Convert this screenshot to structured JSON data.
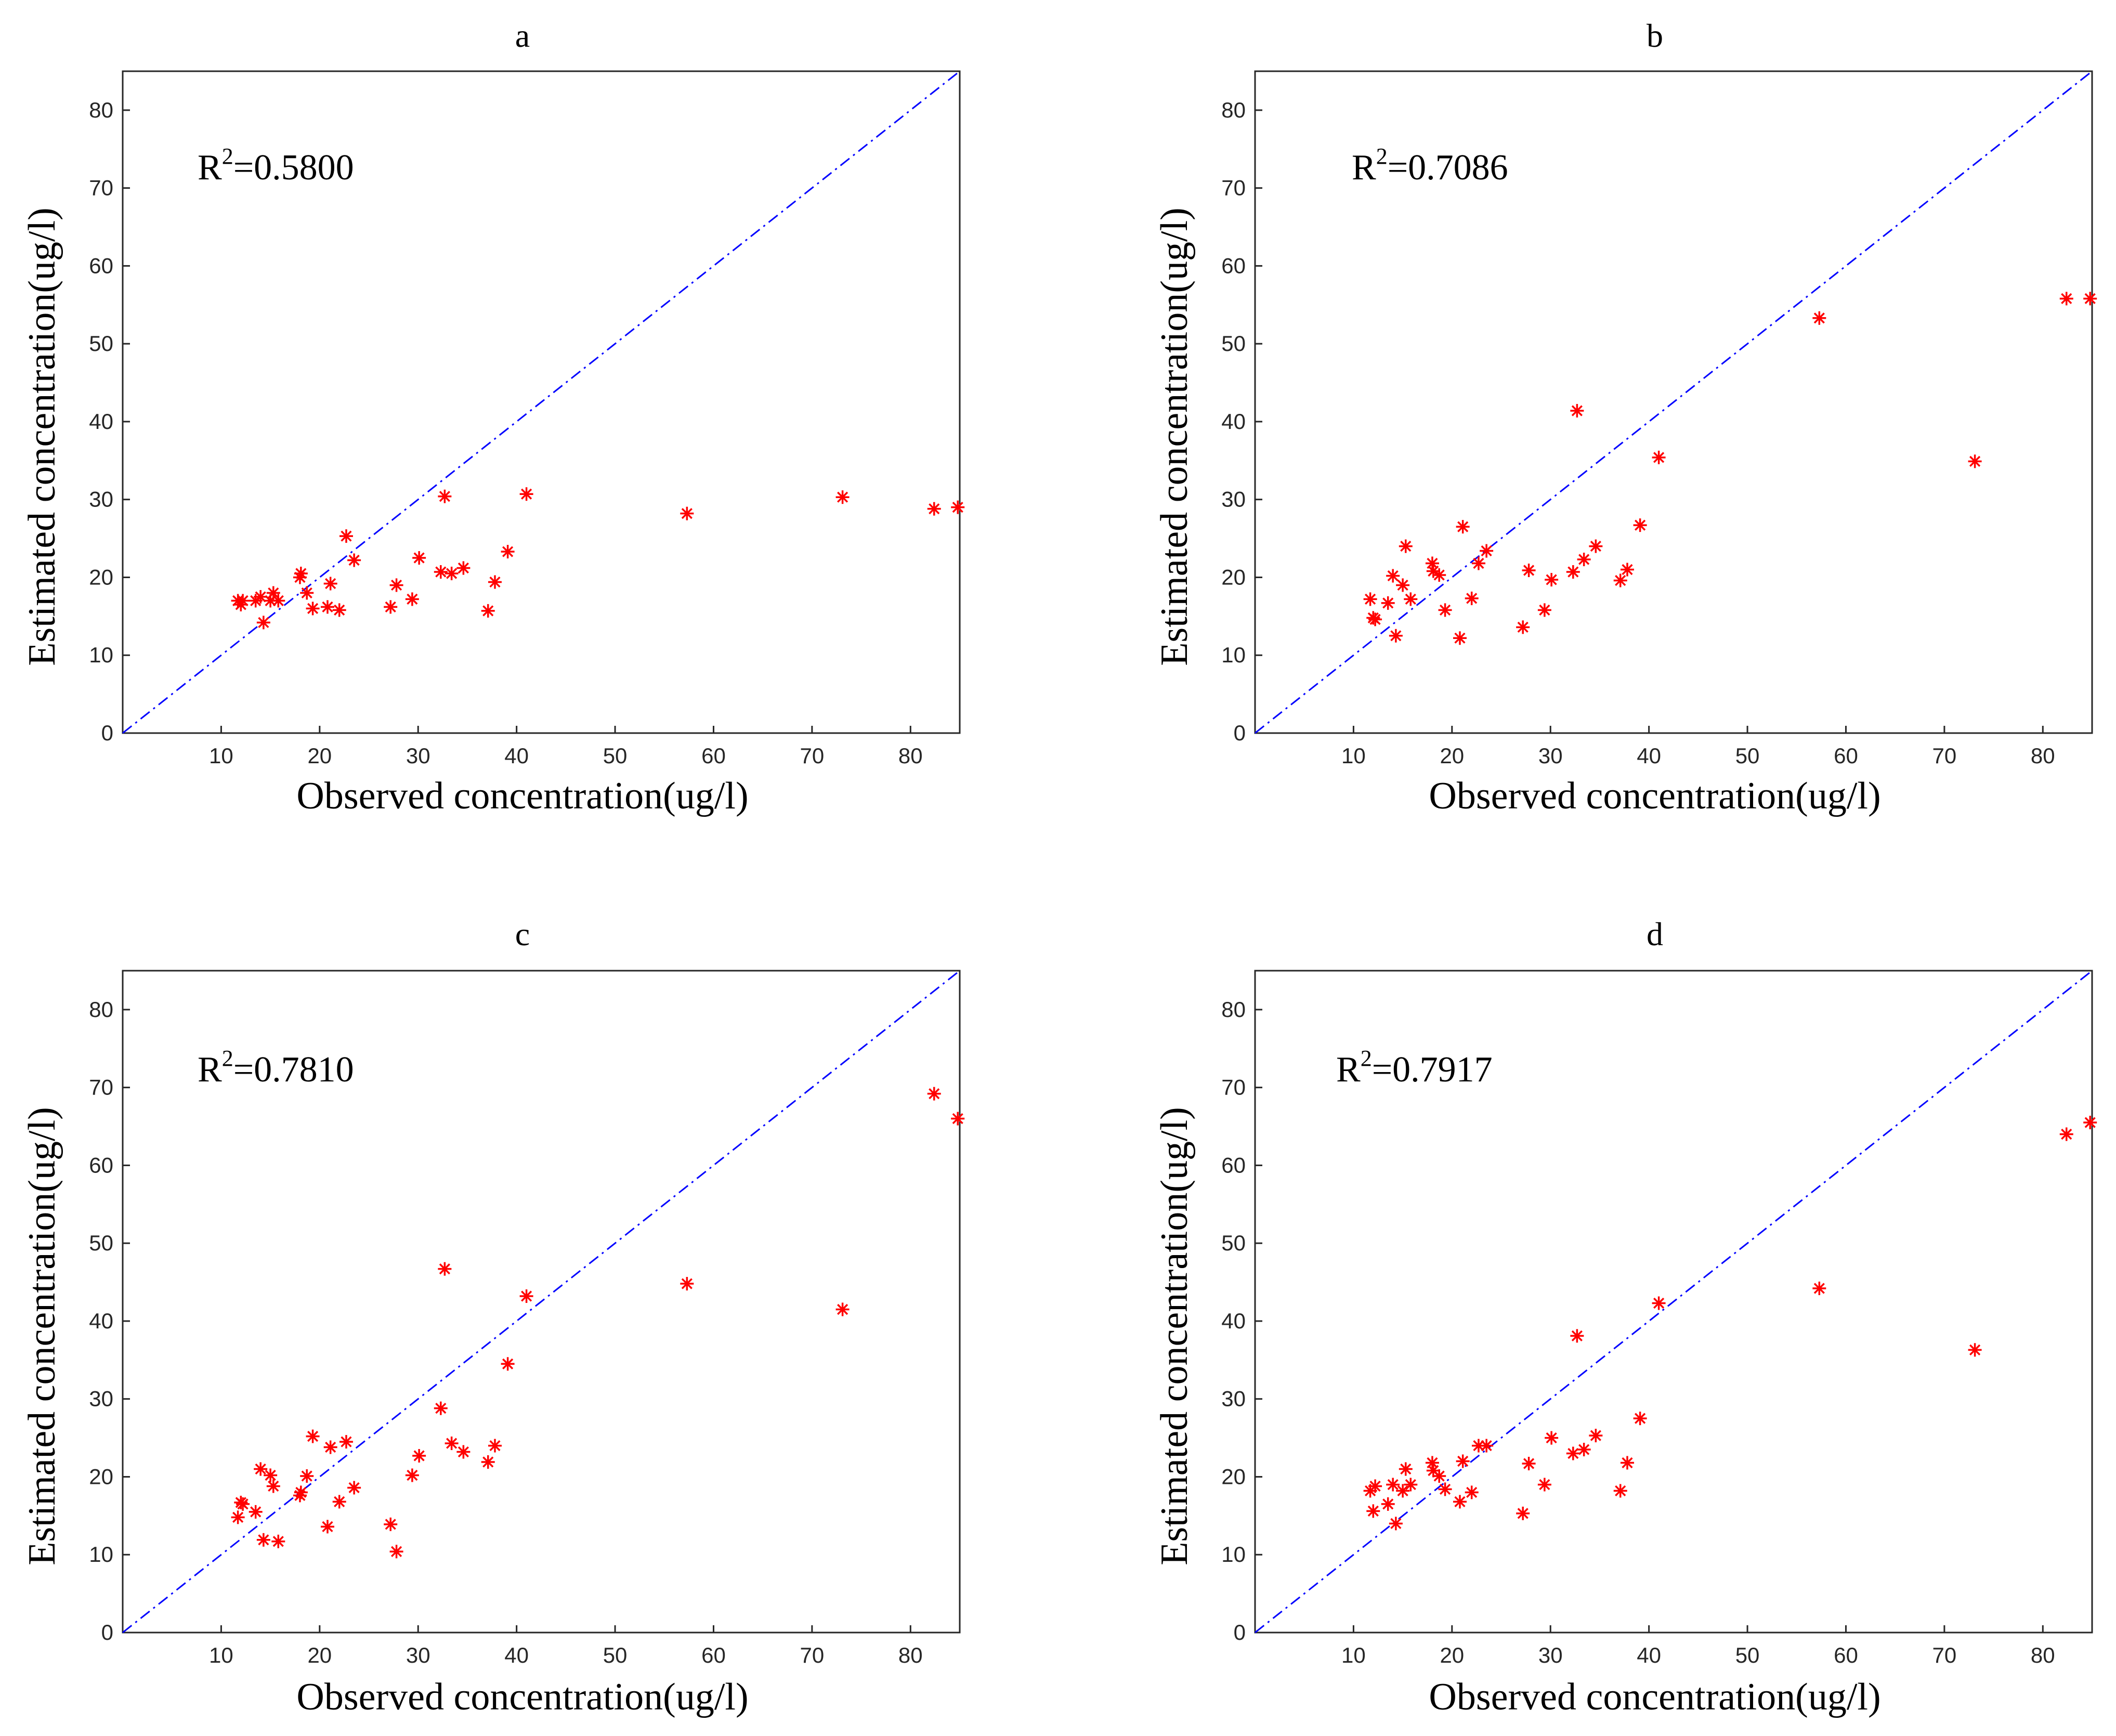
{
  "figure": {
    "panels": [
      {
        "title": "a",
        "r2_prefix": "R",
        "r2_sup": "2",
        "r2_value": "=0.5800"
      },
      {
        "title": "b",
        "r2_prefix": "R",
        "r2_sup": "2",
        "r2_value": "=0.7086"
      },
      {
        "title": "c",
        "r2_prefix": "R",
        "r2_sup": "2",
        "r2_value": "=0.7810"
      },
      {
        "title": "d",
        "r2_prefix": "R",
        "r2_sup": "2",
        "r2_value": "=0.7917"
      }
    ]
  },
  "colors": {
    "points": "#ff0000",
    "reference_line": "#0000ff",
    "axes": "#262626"
  },
  "chart_data": [
    {
      "type": "scatter",
      "title": "a",
      "annotation": "R2=0.5800",
      "xlabel": "Observed concentration(ug/l)",
      "ylabel": "Estimated concentration(ug/l)",
      "xlim": [
        0,
        85
      ],
      "ylim": [
        0,
        85
      ],
      "xticks": [
        10,
        20,
        30,
        40,
        50,
        60,
        70,
        80
      ],
      "yticks": [
        0,
        10,
        20,
        30,
        40,
        50,
        60,
        70,
        80
      ],
      "reference_line": "y = x",
      "x": [
        11.7,
        12.0,
        12.2,
        13.5,
        14.0,
        14.3,
        15.0,
        15.3,
        15.8,
        18.0,
        18.1,
        18.7,
        19.3,
        20.8,
        21.1,
        22.0,
        22.7,
        23.5,
        27.2,
        27.8,
        29.4,
        30.1,
        32.3,
        32.7,
        33.4,
        34.6,
        37.1,
        37.8,
        39.1,
        41.0,
        57.3,
        73.1,
        82.4,
        84.8
      ],
      "y": [
        17.0,
        16.5,
        17.0,
        17.0,
        17.5,
        14.2,
        17.0,
        18.0,
        17.0,
        20.0,
        20.5,
        18.0,
        16.0,
        16.2,
        19.2,
        15.8,
        25.3,
        22.2,
        16.2,
        19.0,
        17.2,
        22.5,
        20.7,
        30.4,
        20.5,
        21.2,
        15.7,
        19.4,
        23.3,
        30.7,
        28.2,
        30.3,
        28.8,
        29.0
      ]
    },
    {
      "type": "scatter",
      "title": "b",
      "annotation": "R2=0.7086",
      "xlabel": "Observed concentration(ug/l)",
      "ylabel": "Estimated concentration(ug/l)",
      "xlim": [
        0,
        85
      ],
      "ylim": [
        0,
        85
      ],
      "xticks": [
        10,
        20,
        30,
        40,
        50,
        60,
        70,
        80
      ],
      "yticks": [
        0,
        10,
        20,
        30,
        40,
        50,
        60,
        70,
        80
      ],
      "reference_line": "y = x",
      "x": [
        11.7,
        12.0,
        12.2,
        13.5,
        14.0,
        14.3,
        15.0,
        15.3,
        15.8,
        18.0,
        18.1,
        18.7,
        19.3,
        20.8,
        21.1,
        22.0,
        22.7,
        23.5,
        27.2,
        27.8,
        29.4,
        30.1,
        32.3,
        32.7,
        33.4,
        34.6,
        37.1,
        37.8,
        39.1,
        41.0,
        57.3,
        73.1,
        82.4,
        84.8
      ],
      "y": [
        17.2,
        14.8,
        14.6,
        16.7,
        20.2,
        12.5,
        19.0,
        24.0,
        17.2,
        21.8,
        20.8,
        20.3,
        15.8,
        12.2,
        26.5,
        17.3,
        21.8,
        23.4,
        13.6,
        20.9,
        15.8,
        19.7,
        20.7,
        41.4,
        22.3,
        24.0,
        19.6,
        21.0,
        26.7,
        35.4,
        53.3,
        34.9,
        55.8,
        55.8
      ]
    },
    {
      "type": "scatter",
      "title": "c",
      "annotation": "R2=0.7810",
      "xlabel": "Observed concentration(ug/l)",
      "ylabel": "Estimated concentration(ug/l)",
      "xlim": [
        0,
        85
      ],
      "ylim": [
        0,
        85
      ],
      "xticks": [
        10,
        20,
        30,
        40,
        50,
        60,
        70,
        80
      ],
      "yticks": [
        0,
        10,
        20,
        30,
        40,
        50,
        60,
        70,
        80
      ],
      "reference_line": "y = x",
      "x": [
        11.7,
        12.0,
        12.2,
        13.5,
        14.0,
        14.3,
        15.0,
        15.3,
        15.8,
        18.0,
        18.1,
        18.7,
        19.3,
        20.8,
        21.1,
        22.0,
        22.7,
        23.5,
        27.2,
        27.8,
        29.4,
        30.1,
        32.3,
        32.7,
        33.4,
        34.6,
        37.1,
        37.8,
        39.1,
        41.0,
        57.3,
        73.1,
        82.4,
        84.8
      ],
      "y": [
        14.8,
        16.7,
        16.5,
        15.5,
        21.0,
        11.9,
        20.2,
        18.8,
        11.7,
        17.6,
        18.0,
        20.1,
        25.2,
        13.6,
        23.8,
        16.8,
        24.5,
        18.6,
        13.9,
        10.4,
        20.2,
        22.7,
        28.8,
        46.7,
        24.3,
        23.2,
        21.9,
        24.0,
        34.5,
        43.2,
        44.8,
        41.5,
        69.2,
        66.0
      ]
    },
    {
      "type": "scatter",
      "title": "d",
      "annotation": "R2=0.7917",
      "xlabel": "Observed concentration(ug/l)",
      "ylabel": "Estimated concentration(ug/l)",
      "xlim": [
        0,
        85
      ],
      "ylim": [
        0,
        85
      ],
      "xticks": [
        10,
        20,
        30,
        40,
        50,
        60,
        70,
        80
      ],
      "yticks": [
        0,
        10,
        20,
        30,
        40,
        50,
        60,
        70,
        80
      ],
      "reference_line": "y = x",
      "x": [
        11.7,
        12.0,
        12.2,
        13.5,
        14.0,
        14.3,
        15.0,
        15.3,
        15.8,
        18.0,
        18.1,
        18.7,
        19.3,
        20.8,
        21.1,
        22.0,
        22.7,
        23.5,
        27.2,
        27.8,
        29.4,
        30.1,
        32.3,
        32.7,
        33.4,
        34.6,
        37.1,
        37.8,
        39.1,
        41.0,
        57.3,
        73.1,
        82.4,
        84.8
      ],
      "y": [
        18.2,
        15.6,
        18.8,
        16.5,
        19.0,
        14.0,
        18.2,
        21.0,
        19.0,
        21.8,
        20.8,
        20.1,
        18.4,
        16.8,
        22.0,
        18.0,
        24.0,
        24.0,
        15.3,
        21.7,
        19.0,
        25.0,
        23.0,
        38.1,
        23.5,
        25.3,
        18.2,
        21.8,
        27.5,
        42.3,
        44.2,
        36.3,
        64.0,
        65.5
      ]
    }
  ]
}
